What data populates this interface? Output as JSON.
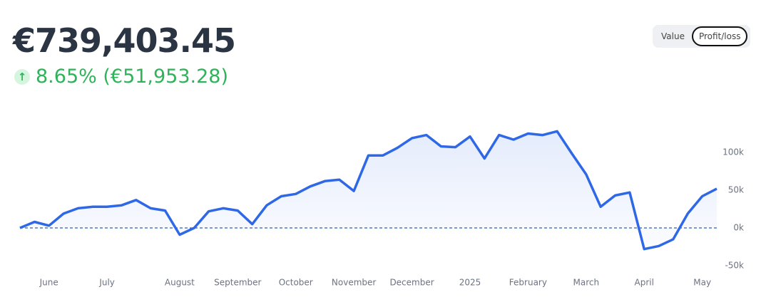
{
  "chart_data": {
    "type": "line",
    "title": "€739,403.45",
    "subtitle": "8.65% (€51,953.28)",
    "categories": [
      null,
      null,
      "June",
      null,
      null,
      null,
      "July",
      null,
      null,
      null,
      null,
      "August",
      null,
      null,
      null,
      "September",
      null,
      null,
      null,
      "October",
      null,
      null,
      null,
      "November",
      null,
      null,
      null,
      "December",
      null,
      null,
      null,
      "2025",
      null,
      null,
      null,
      "February",
      null,
      null,
      null,
      "March",
      null,
      null,
      null,
      "April",
      null,
      null,
      null,
      "May",
      null
    ],
    "series": [
      {
        "name": "Profit/loss",
        "color": "#2f68e6",
        "values": [
          0,
          8000,
          3000,
          19000,
          26000,
          28000,
          28000,
          30000,
          37000,
          26000,
          23000,
          -9000,
          0,
          22000,
          26000,
          23000,
          5000,
          30000,
          42000,
          45000,
          55000,
          62000,
          64000,
          49000,
          96000,
          96000,
          106000,
          119000,
          123000,
          108000,
          107000,
          121000,
          92000,
          123000,
          117000,
          125000,
          123000,
          128000,
          99000,
          71000,
          28000,
          43000,
          47000,
          -28000,
          -24000,
          -15000,
          19000,
          42000,
          52000
        ]
      }
    ],
    "ylim": [
      -55000,
      140000
    ],
    "yticks": [
      {
        "value": -50000,
        "label": "-50k"
      },
      {
        "value": 0,
        "label": "0k"
      },
      {
        "value": 50000,
        "label": "50k"
      },
      {
        "value": 100000,
        "label": "100k"
      }
    ],
    "grid": false
  },
  "toggle": {
    "options": [
      "Value",
      "Profit/loss"
    ],
    "selected": 1
  }
}
